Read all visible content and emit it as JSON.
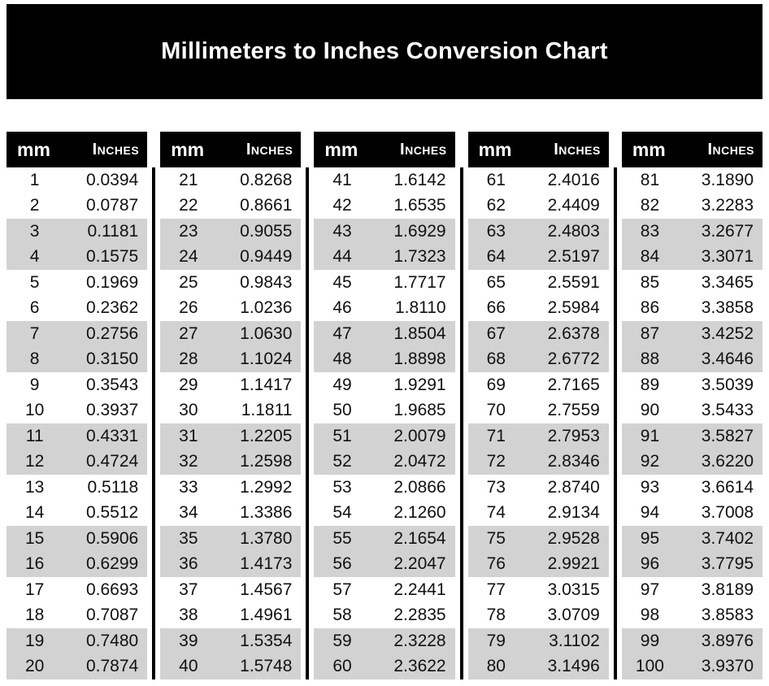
{
  "title": "Millimeters to Inches Conversion Chart",
  "header": {
    "mm": "mm",
    "inches": "Inches"
  },
  "colors": {
    "title_bg": "#000000",
    "title_text": "#ffffff",
    "header_bg": "#000000",
    "header_text": "#ffffff",
    "stripe": "#d2d2d2",
    "divider": "#000000",
    "body_text": "#111111",
    "page_bg": "#ffffff"
  },
  "chart_data": {
    "type": "table",
    "title": "Millimeters to Inches Conversion Chart",
    "column_headers": [
      "mm",
      "Inches"
    ],
    "table_blocks": 5,
    "rows_per_block": 20,
    "rows": [
      [
        "1",
        "0.0394"
      ],
      [
        "2",
        "0.0787"
      ],
      [
        "3",
        "0.1181"
      ],
      [
        "4",
        "0.1575"
      ],
      [
        "5",
        "0.1969"
      ],
      [
        "6",
        "0.2362"
      ],
      [
        "7",
        "0.2756"
      ],
      [
        "8",
        "0.3150"
      ],
      [
        "9",
        "0.3543"
      ],
      [
        "10",
        "0.3937"
      ],
      [
        "11",
        "0.4331"
      ],
      [
        "12",
        "0.4724"
      ],
      [
        "13",
        "0.5118"
      ],
      [
        "14",
        "0.5512"
      ],
      [
        "15",
        "0.5906"
      ],
      [
        "16",
        "0.6299"
      ],
      [
        "17",
        "0.6693"
      ],
      [
        "18",
        "0.7087"
      ],
      [
        "19",
        "0.7480"
      ],
      [
        "20",
        "0.7874"
      ],
      [
        "21",
        "0.8268"
      ],
      [
        "22",
        "0.8661"
      ],
      [
        "23",
        "0.9055"
      ],
      [
        "24",
        "0.9449"
      ],
      [
        "25",
        "0.9843"
      ],
      [
        "26",
        "1.0236"
      ],
      [
        "27",
        "1.0630"
      ],
      [
        "28",
        "1.1024"
      ],
      [
        "29",
        "1.1417"
      ],
      [
        "30",
        "1.1811"
      ],
      [
        "31",
        "1.2205"
      ],
      [
        "32",
        "1.2598"
      ],
      [
        "33",
        "1.2992"
      ],
      [
        "34",
        "1.3386"
      ],
      [
        "35",
        "1.3780"
      ],
      [
        "36",
        "1.4173"
      ],
      [
        "37",
        "1.4567"
      ],
      [
        "38",
        "1.4961"
      ],
      [
        "39",
        "1.5354"
      ],
      [
        "40",
        "1.5748"
      ],
      [
        "41",
        "1.6142"
      ],
      [
        "42",
        "1.6535"
      ],
      [
        "43",
        "1.6929"
      ],
      [
        "44",
        "1.7323"
      ],
      [
        "45",
        "1.7717"
      ],
      [
        "46",
        "1.8110"
      ],
      [
        "47",
        "1.8504"
      ],
      [
        "48",
        "1.8898"
      ],
      [
        "49",
        "1.9291"
      ],
      [
        "50",
        "1.9685"
      ],
      [
        "51",
        "2.0079"
      ],
      [
        "52",
        "2.0472"
      ],
      [
        "53",
        "2.0866"
      ],
      [
        "54",
        "2.1260"
      ],
      [
        "55",
        "2.1654"
      ],
      [
        "56",
        "2.2047"
      ],
      [
        "57",
        "2.2441"
      ],
      [
        "58",
        "2.2835"
      ],
      [
        "59",
        "2.3228"
      ],
      [
        "60",
        "2.3622"
      ],
      [
        "61",
        "2.4016"
      ],
      [
        "62",
        "2.4409"
      ],
      [
        "63",
        "2.4803"
      ],
      [
        "64",
        "2.5197"
      ],
      [
        "65",
        "2.5591"
      ],
      [
        "66",
        "2.5984"
      ],
      [
        "67",
        "2.6378"
      ],
      [
        "68",
        "2.6772"
      ],
      [
        "69",
        "2.7165"
      ],
      [
        "70",
        "2.7559"
      ],
      [
        "71",
        "2.7953"
      ],
      [
        "72",
        "2.8346"
      ],
      [
        "73",
        "2.8740"
      ],
      [
        "74",
        "2.9134"
      ],
      [
        "75",
        "2.9528"
      ],
      [
        "76",
        "2.9921"
      ],
      [
        "77",
        "3.0315"
      ],
      [
        "78",
        "3.0709"
      ],
      [
        "79",
        "3.1102"
      ],
      [
        "80",
        "3.1496"
      ],
      [
        "81",
        "3.1890"
      ],
      [
        "82",
        "3.2283"
      ],
      [
        "83",
        "3.2677"
      ],
      [
        "84",
        "3.3071"
      ],
      [
        "85",
        "3.3465"
      ],
      [
        "86",
        "3.3858"
      ],
      [
        "87",
        "3.4252"
      ],
      [
        "88",
        "3.4646"
      ],
      [
        "89",
        "3.5039"
      ],
      [
        "90",
        "3.5433"
      ],
      [
        "91",
        "3.5827"
      ],
      [
        "92",
        "3.6220"
      ],
      [
        "93",
        "3.6614"
      ],
      [
        "94",
        "3.7008"
      ],
      [
        "95",
        "3.7402"
      ],
      [
        "96",
        "3.7795"
      ],
      [
        "97",
        "3.8189"
      ],
      [
        "98",
        "3.8583"
      ],
      [
        "99",
        "3.8976"
      ],
      [
        "100",
        "3.9370"
      ]
    ]
  }
}
